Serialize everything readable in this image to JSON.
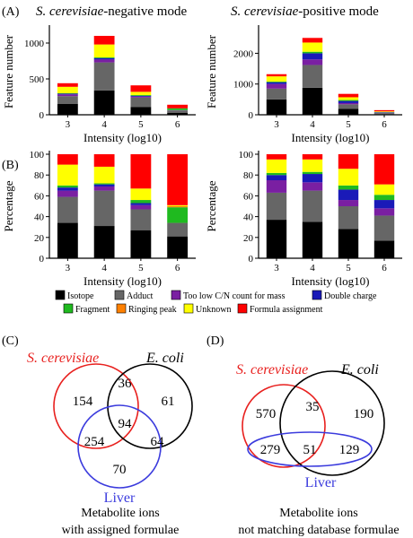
{
  "colors": {
    "Isotope": "#000000",
    "Adduct": "#666666",
    "Too low C/N count for mass": "#7a1fa2",
    "Double charge": "#1a1ab8",
    "Fragment": "#1fba1f",
    "Ringing peak": "#ff8000",
    "Unknown": "#ffff00",
    "Formula assignment": "#ff0000"
  },
  "panel_labels": {
    "A": "(A)",
    "B": "(B)",
    "C": "(C)",
    "D": "(D)"
  },
  "titles": {
    "neg_em": "S. cerevisiae",
    "neg_rest": "-negative mode",
    "pos_em": "S. cerevisiae",
    "pos_rest": "-positive mode"
  },
  "legend": {
    "items": [
      "Isotope",
      "Adduct",
      "Too low C/N count for mass",
      "Double charge",
      "Fragment",
      "Ringing peak",
      "Unknown",
      "Formula assignment"
    ]
  },
  "chart_data": [
    {
      "id": "A-neg",
      "type": "bar",
      "stacked": true,
      "categories": [
        "3",
        "4",
        "5",
        "6"
      ],
      "xlabel": "Intensity (log10)",
      "ylabel": "Feature number",
      "ylim": [
        0,
        1200
      ],
      "yticks": [
        0,
        500,
        1000
      ],
      "series": [
        {
          "name": "Isotope",
          "values": [
            150,
            340,
            110,
            25
          ]
        },
        {
          "name": "Adduct",
          "values": [
            110,
            390,
            130,
            35
          ]
        },
        {
          "name": "Too low C/N count for mass",
          "values": [
            25,
            40,
            15,
            5
          ]
        },
        {
          "name": "Double charge",
          "values": [
            10,
            20,
            10,
            0
          ]
        },
        {
          "name": "Fragment",
          "values": [
            5,
            10,
            10,
            25
          ]
        },
        {
          "name": "Ringing peak",
          "values": [
            0,
            0,
            0,
            0
          ]
        },
        {
          "name": "Unknown",
          "values": [
            90,
            180,
            45,
            0
          ]
        },
        {
          "name": "Formula assignment",
          "values": [
            50,
            120,
            90,
            50
          ]
        }
      ]
    },
    {
      "id": "A-pos",
      "type": "bar",
      "stacked": true,
      "categories": [
        "3",
        "4",
        "5",
        "6"
      ],
      "xlabel": "Intensity (log10)",
      "ylabel": "Feature number",
      "ylim": [
        0,
        2800
      ],
      "yticks": [
        0,
        1000,
        2000
      ],
      "series": [
        {
          "name": "Isotope",
          "values": [
            500,
            880,
            190,
            20
          ]
        },
        {
          "name": "Adduct",
          "values": [
            350,
            740,
            150,
            35
          ]
        },
        {
          "name": "Too low C/N count for mass",
          "values": [
            150,
            180,
            40,
            10
          ]
        },
        {
          "name": "Double charge",
          "values": [
            60,
            200,
            70,
            15
          ]
        },
        {
          "name": "Fragment",
          "values": [
            20,
            50,
            30,
            10
          ]
        },
        {
          "name": "Ringing peak",
          "values": [
            0,
            0,
            0,
            0
          ]
        },
        {
          "name": "Unknown",
          "values": [
            170,
            300,
            90,
            20
          ]
        },
        {
          "name": "Formula assignment",
          "values": [
            70,
            150,
            110,
            40
          ]
        }
      ]
    },
    {
      "id": "B-neg",
      "type": "bar",
      "stacked": true,
      "categories": [
        "3",
        "4",
        "5",
        "6"
      ],
      "xlabel": "Intensity (log10)",
      "ylabel": "Percentage",
      "ylim": [
        0,
        100
      ],
      "yticks": [
        0,
        20,
        40,
        60,
        80,
        100
      ],
      "series": [
        {
          "name": "Isotope",
          "values": [
            34,
            31,
            27,
            21
          ]
        },
        {
          "name": "Adduct",
          "values": [
            25,
            34,
            20,
            13
          ]
        },
        {
          "name": "Too low C/N count for mass",
          "values": [
            6,
            4,
            4,
            0
          ]
        },
        {
          "name": "Double charge",
          "values": [
            3,
            2,
            2,
            0
          ]
        },
        {
          "name": "Fragment",
          "values": [
            2,
            1,
            3,
            15
          ]
        },
        {
          "name": "Ringing peak",
          "values": [
            0,
            0,
            0,
            1
          ]
        },
        {
          "name": "Unknown",
          "values": [
            20,
            16,
            11,
            1
          ]
        },
        {
          "name": "Formula assignment",
          "values": [
            10,
            12,
            33,
            49
          ]
        }
      ]
    },
    {
      "id": "B-pos",
      "type": "bar",
      "stacked": true,
      "categories": [
        "3",
        "4",
        "5",
        "6"
      ],
      "xlabel": "Intensity (log10)",
      "ylabel": "Percentage",
      "ylim": [
        0,
        100
      ],
      "yticks": [
        0,
        20,
        40,
        60,
        80,
        100
      ],
      "series": [
        {
          "name": "Isotope",
          "values": [
            37,
            35,
            28,
            17
          ]
        },
        {
          "name": "Adduct",
          "values": [
            26,
            30,
            22,
            24
          ]
        },
        {
          "name": "Too low C/N count for mass",
          "values": [
            12,
            8,
            6,
            7
          ]
        },
        {
          "name": "Double charge",
          "values": [
            5,
            8,
            10,
            8
          ]
        },
        {
          "name": "Fragment",
          "values": [
            2,
            2,
            4,
            5
          ]
        },
        {
          "name": "Ringing peak",
          "values": [
            0,
            0,
            0,
            0
          ]
        },
        {
          "name": "Unknown",
          "values": [
            13,
            12,
            16,
            10
          ]
        },
        {
          "name": "Formula assignment",
          "values": [
            5,
            5,
            14,
            29
          ]
        }
      ]
    }
  ],
  "venn_c": {
    "sets": [
      "S. cerevisiae",
      "E. coli",
      "Liver"
    ],
    "counts": {
      "S_only": "154",
      "S_E": "36",
      "E_only": "61",
      "S_E_L": "94",
      "S_L": "254",
      "E_L": "64",
      "L_only": "70"
    },
    "caption_1": "Metabolite ions",
    "caption_2": "with assigned formulae"
  },
  "venn_d": {
    "sets": [
      "S. cerevisiae",
      "E. coli",
      "Liver"
    ],
    "counts": {
      "S_only": "570",
      "S_E": "35",
      "E_only": "190",
      "S_L": "279",
      "S_E_L": "51",
      "E_L": "129"
    },
    "caption_1": "Metabolite ions",
    "caption_2": "not matching database formulae"
  }
}
